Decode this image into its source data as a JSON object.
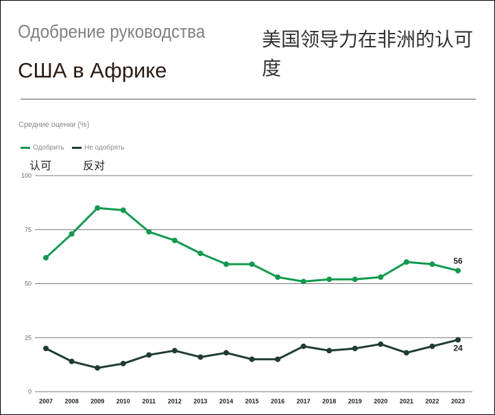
{
  "title_ru_line1": "Одобрение руководства",
  "title_ru_line2": "США в Африке",
  "title_zh": "美国领导力在非洲的认可度",
  "chart_data": {
    "type": "line",
    "subtitle": "Средние оценки (%)",
    "categories": [
      "2007",
      "2008",
      "2009",
      "2010",
      "2011",
      "2012",
      "2013",
      "2014",
      "2015",
      "2016",
      "2017",
      "2018",
      "2019",
      "2020",
      "2021",
      "2022",
      "2023"
    ],
    "series": [
      {
        "name": "Одобрить",
        "name_zh": "认可",
        "color": "#0e9a4e",
        "values": [
          62,
          73,
          85,
          84,
          74,
          70,
          64,
          59,
          59,
          53,
          51,
          52,
          52,
          53,
          60,
          59,
          56
        ],
        "end_label": "56"
      },
      {
        "name": "Не одобрять",
        "name_zh": "反对",
        "color": "#1f3b33",
        "values": [
          20,
          14,
          11,
          13,
          17,
          19,
          16,
          18,
          15,
          15,
          21,
          19,
          20,
          22,
          18,
          21,
          24
        ],
        "end_label": "24"
      }
    ],
    "ylim": [
      0,
      100
    ],
    "yticks": [
      "0",
      "25",
      "50",
      "75",
      "100"
    ],
    "grid": true,
    "legend": "top-left"
  }
}
